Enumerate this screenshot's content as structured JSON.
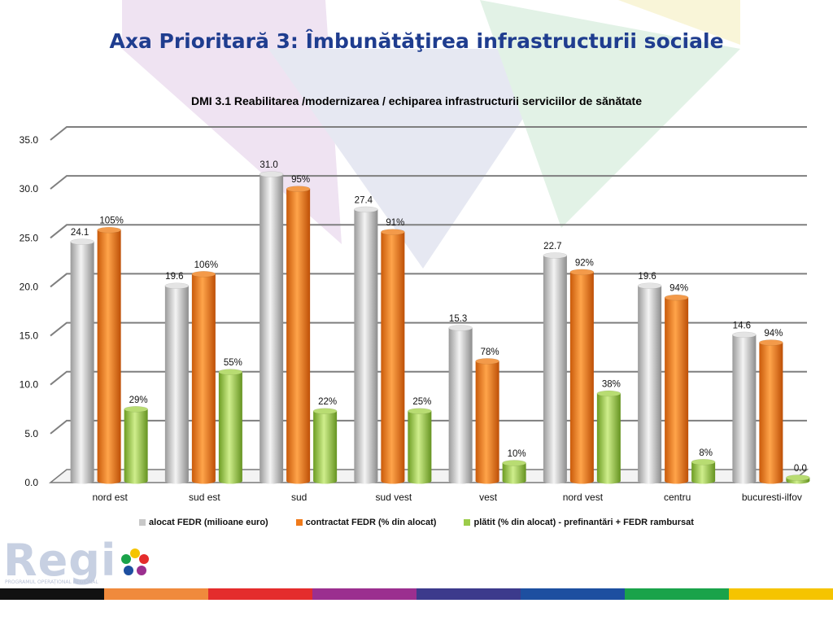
{
  "slide": {
    "title": "Axa Prioritară 3: Îmbunătăţirea infrastructurii sociale"
  },
  "logo": {
    "text": "Regi",
    "subtitle": "PROGRAMUL OPERAȚIONAL REGIONAL"
  },
  "footer_colors": [
    "#111111",
    "#f08a3c",
    "#e42c2c",
    "#9b2f8f",
    "#3c3a8c",
    "#1d4fa0",
    "#1aa34a",
    "#f5c400"
  ],
  "chart_data": {
    "type": "bar",
    "title": "DMI 3.1 Reabilitarea /modernizarea / echiparea infrastructurii serviciilor de sănătate",
    "categories": [
      "nord est",
      "sud est",
      "sud",
      "sud vest",
      "vest",
      "nord vest",
      "centru",
      "bucuresti-ilfov"
    ],
    "ylim": [
      0,
      35
    ],
    "yticks": [
      "0.0",
      "5.0",
      "10.0",
      "15.0",
      "20.0",
      "25.0",
      "30.0",
      "35.0"
    ],
    "grid": true,
    "legend_position": "bottom",
    "series": [
      {
        "name": "alocat FEDR (milioane euro)",
        "color": "#c8c8c8",
        "values": [
          24.1,
          19.6,
          31.0,
          27.4,
          15.3,
          22.7,
          19.6,
          14.6
        ],
        "labels": [
          "24.1",
          "19.6",
          "31.0",
          "27.4",
          "15.3",
          "22.7",
          "19.6",
          "14.6"
        ]
      },
      {
        "name": "contractat FEDR (% din alocat)",
        "color": "#f07a1a",
        "values": [
          25.3,
          20.8,
          29.5,
          25.1,
          11.9,
          21.0,
          18.4,
          13.8
        ],
        "labels": [
          "105%",
          "106%",
          "95%",
          "91%",
          "78%",
          "92%",
          "94%",
          "94%"
        ]
      },
      {
        "name": "plătit (% din alocat) - prefinantări + FEDR rambursat",
        "color": "#9ccc4a",
        "values": [
          7.0,
          10.8,
          6.8,
          6.8,
          1.5,
          8.6,
          1.6,
          0.0
        ],
        "labels": [
          "29%",
          "55%",
          "22%",
          "25%",
          "10%",
          "38%",
          "8%",
          "0.0"
        ]
      }
    ]
  }
}
